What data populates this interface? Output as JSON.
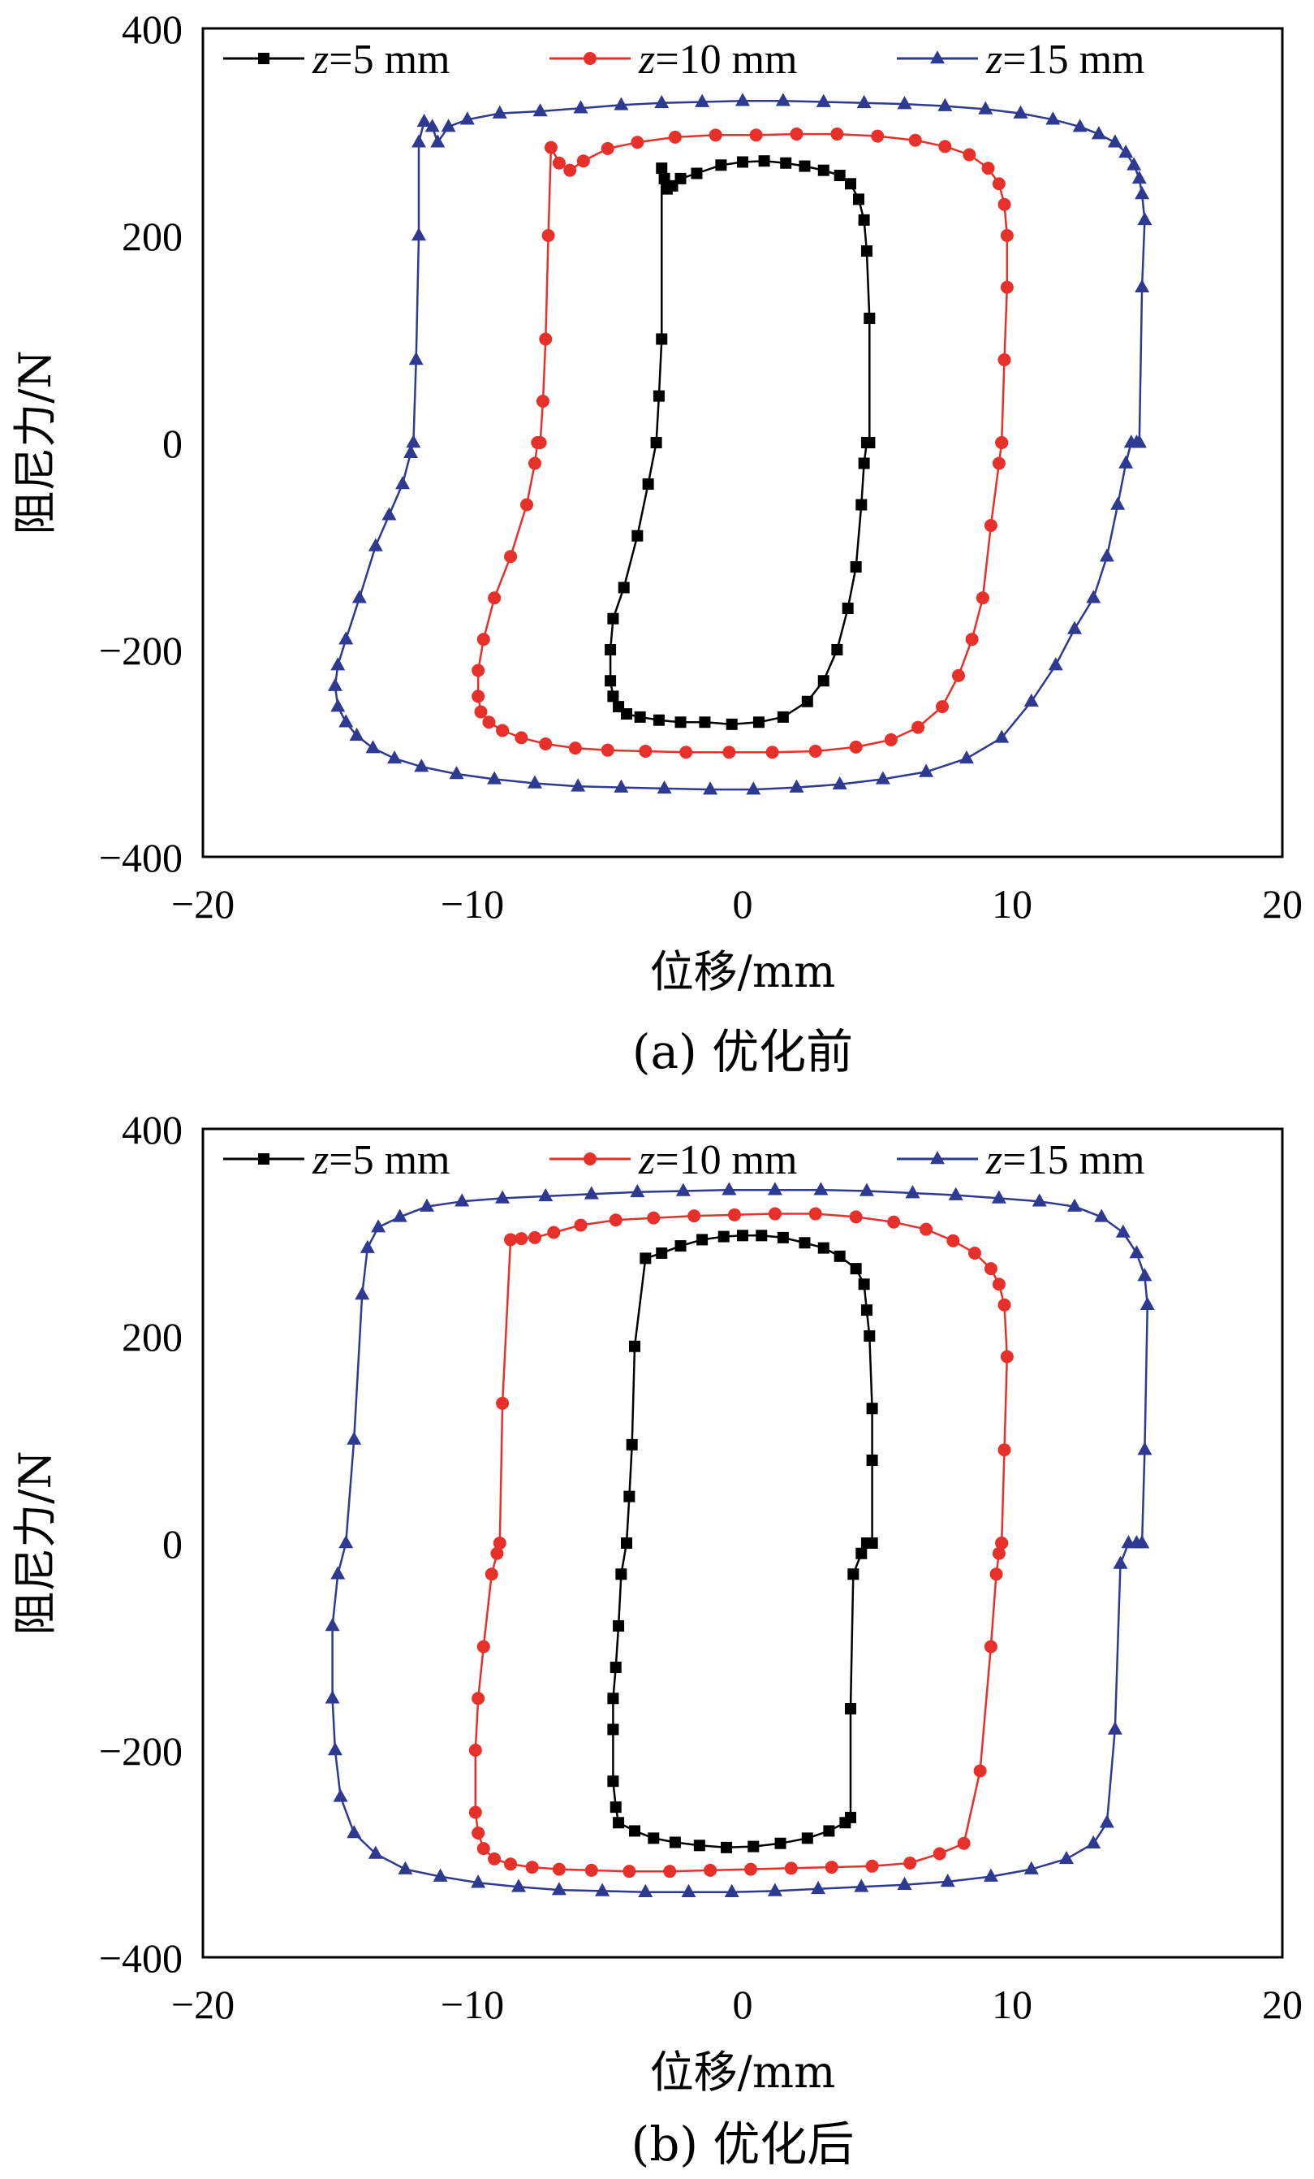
{
  "chart_data": [
    {
      "type": "line",
      "title": "",
      "caption": "(a)  优化前",
      "xlabel": "位移/mm",
      "ylabel": "阻尼力/N",
      "xlim": [
        -20,
        20
      ],
      "ylim": [
        -400,
        400
      ],
      "xticks": [
        "−20",
        "−10",
        "0",
        "10",
        "20"
      ],
      "yticks": [
        "400",
        "200",
        "0",
        "−200",
        "−400"
      ],
      "legend_position": "top",
      "series": [
        {
          "name": "z=5 mm",
          "name_var": "z",
          "name_rest": "=5 mm",
          "color": "#000000",
          "marker": "square",
          "x": [
            4.7,
            4.7,
            4.6,
            4.5,
            4.3,
            4.0,
            3.6,
            3.0,
            2.3,
            1.6,
            0.8,
            0.0,
            -0.8,
            -1.7,
            -2.3,
            -2.6,
            -2.8,
            -2.9,
            -3.0,
            -3.0,
            -3.1,
            -3.2,
            -3.5,
            -3.9,
            -4.4,
            -4.8,
            -4.9,
            -4.9,
            -4.8,
            -4.6,
            -4.3,
            -3.8,
            -3.1,
            -2.3,
            -1.4,
            -0.4,
            0.6,
            1.5,
            2.4,
            3.0,
            3.5,
            3.9,
            4.2,
            4.4,
            4.5,
            4.6,
            4.7
          ],
          "y": [
            0,
            120,
            185,
            215,
            235,
            250,
            258,
            263,
            267,
            270,
            272,
            271,
            268,
            260,
            255,
            248,
            245,
            255,
            265,
            100,
            45,
            0,
            -40,
            -90,
            -140,
            -170,
            -200,
            -230,
            -245,
            -255,
            -262,
            -265,
            -268,
            -270,
            -270,
            -272,
            -270,
            -265,
            -250,
            -230,
            -200,
            -160,
            -120,
            -60,
            -20,
            0,
            0
          ]
        },
        {
          "name": "z=10 mm",
          "name_var": "z",
          "name_rest": "=10 mm",
          "color": "#e8302a",
          "marker": "circle",
          "x": [
            9.6,
            9.7,
            9.8,
            9.8,
            9.7,
            9.5,
            9.1,
            8.4,
            7.5,
            6.4,
            5.0,
            3.5,
            2.0,
            0.5,
            -1.0,
            -2.5,
            -3.9,
            -5.0,
            -5.9,
            -6.4,
            -6.8,
            -7.1,
            -7.2,
            -7.3,
            -7.4,
            -7.5,
            -7.6,
            -7.7,
            -8.0,
            -8.6,
            -9.2,
            -9.6,
            -9.8,
            -9.8,
            -9.7,
            -9.4,
            -8.9,
            -8.2,
            -7.3,
            -6.2,
            -5.0,
            -3.6,
            -2.1,
            -0.5,
            1.1,
            2.7,
            4.2,
            5.5,
            6.5,
            7.4,
            8.0,
            8.5,
            8.9,
            9.2,
            9.5,
            9.6
          ],
          "y": [
            0,
            80,
            150,
            200,
            230,
            250,
            265,
            278,
            286,
            292,
            296,
            298,
            298,
            297,
            297,
            295,
            290,
            284,
            272,
            263,
            270,
            285,
            200,
            100,
            40,
            0,
            0,
            -20,
            -60,
            -110,
            -150,
            -190,
            -220,
            -245,
            -260,
            -270,
            -278,
            -285,
            -291,
            -295,
            -297,
            -298,
            -299,
            -299,
            -299,
            -298,
            -294,
            -287,
            -275,
            -255,
            -225,
            -190,
            -150,
            -80,
            -20,
            0
          ]
        },
        {
          "name": "z=15 mm",
          "name_var": "z",
          "name_rest": "=15 mm",
          "color": "#2e3a92",
          "marker": "triangle",
          "x": [
            14.7,
            14.8,
            14.9,
            14.8,
            14.7,
            14.5,
            14.2,
            13.8,
            13.2,
            12.5,
            11.5,
            10.3,
            9.0,
            7.5,
            6.0,
            4.5,
            3.0,
            1.5,
            0.0,
            -1.5,
            -3.0,
            -4.5,
            -6.0,
            -7.5,
            -9.0,
            -10.2,
            -10.9,
            -11.3,
            -11.5,
            -11.8,
            -12.0,
            -12.0,
            -12.1,
            -12.2,
            -12.3,
            -12.6,
            -13.1,
            -13.6,
            -14.2,
            -14.7,
            -15.0,
            -15.1,
            -15.0,
            -14.7,
            -14.3,
            -13.7,
            -12.9,
            -11.9,
            -10.6,
            -9.2,
            -7.7,
            -6.1,
            -4.5,
            -2.9,
            -1.2,
            0.4,
            2.0,
            3.6,
            5.2,
            6.8,
            8.3,
            9.6,
            10.7,
            11.6,
            12.3,
            13.0,
            13.5,
            13.9,
            14.2,
            14.4,
            14.6,
            14.7
          ],
          "y": [
            0,
            150,
            215,
            240,
            255,
            268,
            280,
            290,
            298,
            305,
            312,
            318,
            322,
            325,
            327,
            328,
            329,
            330,
            330,
            329,
            328,
            326,
            323,
            320,
            318,
            312,
            305,
            290,
            305,
            310,
            290,
            200,
            80,
            0,
            -10,
            -40,
            -70,
            -100,
            -150,
            -190,
            -215,
            -235,
            -255,
            -270,
            -283,
            -295,
            -305,
            -313,
            -320,
            -325,
            -329,
            -332,
            -333,
            -334,
            -335,
            -335,
            -333,
            -330,
            -325,
            -318,
            -305,
            -285,
            -250,
            -215,
            -180,
            -150,
            -110,
            -60,
            -20,
            0,
            0,
            0
          ]
        }
      ]
    },
    {
      "type": "line",
      "title": "",
      "caption": "(b)  优化后",
      "xlabel": "位移/mm",
      "ylabel": "阻尼力/N",
      "xlim": [
        -20,
        20
      ],
      "ylim": [
        -400,
        400
      ],
      "xticks": [
        "−20",
        "−10",
        "0",
        "10",
        "20"
      ],
      "yticks": [
        "400",
        "200",
        "0",
        "−200",
        "−400"
      ],
      "legend_position": "top",
      "series": [
        {
          "name": "z=5 mm",
          "name_var": "z",
          "name_rest": "=5 mm",
          "color": "#000000",
          "marker": "square",
          "x": [
            4.8,
            4.8,
            4.8,
            4.7,
            4.6,
            4.5,
            4.2,
            3.6,
            3.0,
            2.3,
            1.5,
            0.7,
            0.0,
            -0.7,
            -1.5,
            -2.3,
            -3.0,
            -3.6,
            -4.0,
            -4.1,
            -4.2,
            -4.3,
            -4.5,
            -4.6,
            -4.7,
            -4.8,
            -4.8,
            -4.8,
            -4.7,
            -4.6,
            -4.0,
            -3.3,
            -2.5,
            -1.6,
            -0.6,
            0.4,
            1.4,
            2.4,
            3.2,
            3.8,
            4.0,
            4.0,
            4.1,
            4.4,
            4.6,
            4.8
          ],
          "y": [
            0,
            80,
            130,
            200,
            225,
            250,
            265,
            277,
            285,
            290,
            295,
            297,
            297,
            296,
            293,
            287,
            280,
            275,
            190,
            95,
            45,
            0,
            -30,
            -80,
            -120,
            -150,
            -180,
            -230,
            -255,
            -270,
            -278,
            -285,
            -289,
            -292,
            -294,
            -293,
            -290,
            -285,
            -278,
            -270,
            -265,
            -160,
            -30,
            -10,
            0,
            0
          ]
        },
        {
          "name": "z=10 mm",
          "name_var": "z",
          "name_rest": "=10 mm",
          "color": "#e8302a",
          "marker": "circle",
          "x": [
            9.6,
            9.7,
            9.8,
            9.7,
            9.5,
            9.2,
            8.6,
            7.8,
            6.8,
            5.6,
            4.2,
            2.7,
            1.2,
            -0.3,
            -1.8,
            -3.3,
            -4.7,
            -6.0,
            -7.0,
            -7.7,
            -8.2,
            -8.6,
            -8.9,
            -9.0,
            -9.1,
            -9.3,
            -9.6,
            -9.8,
            -9.9,
            -9.9,
            -9.8,
            -9.6,
            -9.2,
            -8.6,
            -7.8,
            -6.8,
            -5.6,
            -4.2,
            -2.7,
            -1.2,
            0.3,
            1.8,
            3.3,
            4.8,
            6.2,
            7.3,
            8.2,
            8.8,
            9.2,
            9.4,
            9.5,
            9.6
          ],
          "y": [
            0,
            90,
            180,
            230,
            250,
            265,
            280,
            292,
            303,
            310,
            315,
            318,
            318,
            317,
            316,
            314,
            312,
            307,
            300,
            295,
            294,
            293,
            135,
            0,
            -10,
            -30,
            -100,
            -150,
            -200,
            -260,
            -280,
            -295,
            -305,
            -310,
            -313,
            -315,
            -316,
            -317,
            -317,
            -316,
            -315,
            -314,
            -313,
            -312,
            -309,
            -300,
            -290,
            -220,
            -100,
            -30,
            -10,
            0
          ]
        },
        {
          "name": "z=15 mm",
          "name_var": "z",
          "name_rest": "=15 mm",
          "color": "#2e3a92",
          "marker": "triangle",
          "x": [
            14.8,
            14.9,
            15.0,
            14.9,
            14.6,
            14.1,
            13.3,
            12.3,
            11.0,
            9.5,
            7.9,
            6.3,
            4.6,
            2.9,
            1.2,
            -0.5,
            -2.2,
            -3.9,
            -5.6,
            -7.3,
            -8.9,
            -10.4,
            -11.7,
            -12.7,
            -13.5,
            -13.9,
            -14.1,
            -14.4,
            -14.7,
            -15.0,
            -15.2,
            -15.2,
            -15.1,
            -14.9,
            -14.4,
            -13.6,
            -12.5,
            -11.2,
            -9.8,
            -8.3,
            -6.8,
            -5.2,
            -3.6,
            -2.0,
            -0.4,
            1.2,
            2.8,
            4.4,
            6.0,
            7.6,
            9.2,
            10.7,
            12.0,
            13.0,
            13.5,
            13.8,
            14.0,
            14.3,
            14.6,
            14.8
          ],
          "y": [
            0,
            90,
            230,
            258,
            280,
            300,
            315,
            325,
            330,
            333,
            336,
            338,
            340,
            341,
            341,
            341,
            340,
            339,
            337,
            335,
            333,
            330,
            325,
            315,
            305,
            285,
            240,
            100,
            0,
            -30,
            -80,
            -150,
            -200,
            -245,
            -280,
            -300,
            -315,
            -322,
            -328,
            -332,
            -335,
            -336,
            -337,
            -337,
            -337,
            -336,
            -334,
            -332,
            -330,
            -327,
            -322,
            -315,
            -305,
            -290,
            -270,
            -180,
            -20,
            0,
            0,
            0
          ]
        }
      ]
    }
  ]
}
